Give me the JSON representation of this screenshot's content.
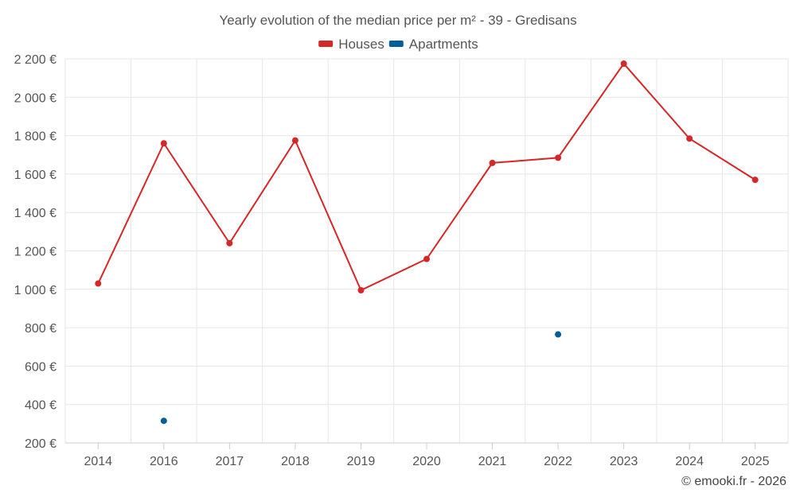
{
  "chart_data": {
    "type": "line",
    "title": "Yearly evolution of the median price per m² - 39 - Gredisans",
    "categories": [
      "2014",
      "2016",
      "2017",
      "2018",
      "2019",
      "2020",
      "2021",
      "2022",
      "2023",
      "2024",
      "2025"
    ],
    "series": [
      {
        "name": "Houses",
        "color": "#d62728",
        "values": [
          1030,
          1760,
          1240,
          1775,
          995,
          1158,
          1658,
          1685,
          2175,
          1785,
          1570
        ]
      },
      {
        "name": "Apartments",
        "color": "#005f99",
        "values": [
          null,
          315,
          null,
          null,
          null,
          null,
          null,
          765,
          null,
          null,
          null
        ]
      }
    ],
    "yaxis": {
      "ticks": [
        200,
        400,
        600,
        800,
        1000,
        1200,
        1400,
        1600,
        1800,
        2000,
        2200
      ],
      "tick_labels": [
        "200 €",
        "400 €",
        "600 €",
        "800 €",
        "1 000 €",
        "1 200 €",
        "1 400 €",
        "1 600 €",
        "1 800 €",
        "2 000 €",
        "2 200 €"
      ],
      "ylim": [
        200,
        2200
      ]
    },
    "xlabel": "",
    "ylabel": "",
    "grid": true,
    "legend": "top-center"
  },
  "credit": "© emooki.fr - 2026"
}
